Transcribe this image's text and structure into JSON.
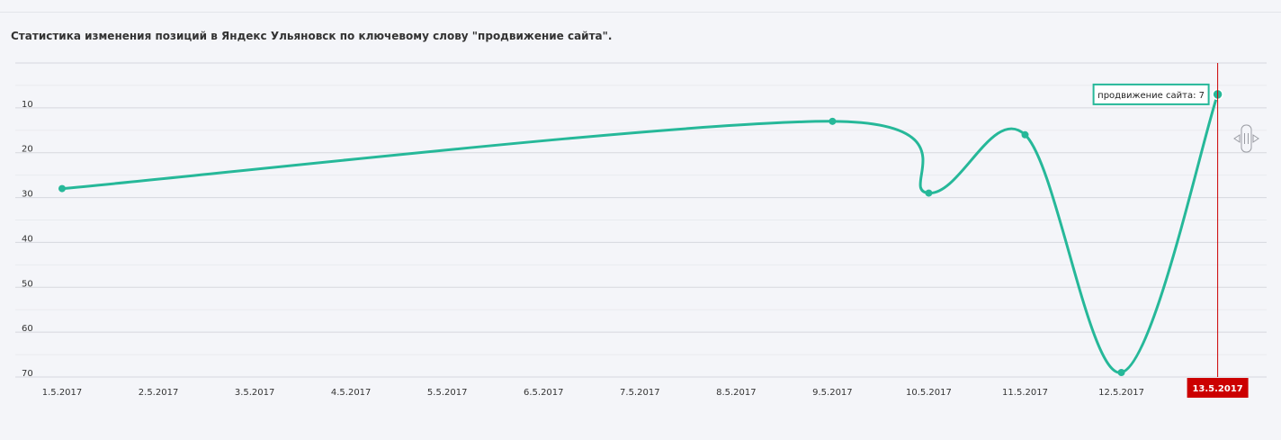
{
  "chart_data": {
    "type": "line",
    "title": "Статистика изменения позиций в Яндекс Ульяновск по ключевому слову \"продвижение сайта\".",
    "categories": [
      "1.5.2017",
      "2.5.2017",
      "3.5.2017",
      "4.5.2017",
      "5.5.2017",
      "6.5.2017",
      "7.5.2017",
      "8.5.2017",
      "9.5.2017",
      "10.5.2017",
      "11.5.2017",
      "12.5.2017",
      "13.5.2017"
    ],
    "series": [
      {
        "name": "продвижение сайта",
        "color": "#26b899",
        "points": [
          {
            "x": "1.5.2017",
            "y": 28
          },
          {
            "x": "9.5.2017",
            "y": 13
          },
          {
            "x": "10.5.2017",
            "y": 29
          },
          {
            "x": "11.5.2017",
            "y": 16
          },
          {
            "x": "12.5.2017",
            "y": 69
          },
          {
            "x": "13.5.2017",
            "y": 7
          }
        ]
      }
    ],
    "y_axis": {
      "ticks": [
        10,
        20,
        30,
        40,
        50,
        60,
        70
      ],
      "range": [
        0,
        70
      ],
      "reversed": true
    },
    "grid": true,
    "legend": "none",
    "cursor": {
      "x": "13.5.2017",
      "label": "13.5.2017",
      "color": "#cc0000"
    },
    "tooltip": {
      "text": "продвижение сайта: 7",
      "border_color": "#26b899"
    }
  },
  "scroll_handle_icon": "double-arrow-scroll-icon"
}
